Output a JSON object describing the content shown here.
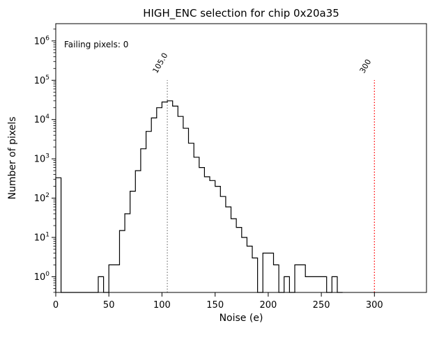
{
  "chart_data": {
    "type": "histogram-step",
    "title": "HIGH_ENC selection for chip 0x20a35",
    "xlabel": "Noise (e)",
    "ylabel": "Number of pixels",
    "annotation": "Failing pixels: 0",
    "annotation_color": "#ff0000",
    "line_color": "#000000",
    "x_ticks": [
      0,
      50,
      100,
      150,
      200,
      250,
      300
    ],
    "y_tick_exponents": [
      0,
      1,
      2,
      3,
      4,
      5,
      6
    ],
    "xlim": [
      0,
      349
    ],
    "ylim_log10": [
      -0.4,
      6.44
    ],
    "bin_start": 0,
    "bin_width": 5,
    "counts": [
      330,
      0,
      0,
      0,
      0,
      0,
      0,
      0,
      1,
      0,
      2,
      2,
      15,
      40,
      150,
      500,
      1800,
      5000,
      11000,
      20000,
      28000,
      30000,
      22000,
      12000,
      6000,
      2500,
      1100,
      600,
      350,
      280,
      200,
      110,
      60,
      30,
      18,
      10,
      6,
      3,
      0,
      4,
      4,
      2,
      0,
      1,
      0,
      2,
      2,
      1,
      1,
      1,
      1,
      0,
      1,
      0
    ],
    "vlines": [
      {
        "x": 105,
        "label": "105.0",
        "color": "#808080"
      },
      {
        "x": 300,
        "label": "300",
        "color": "#ff0000"
      }
    ]
  }
}
